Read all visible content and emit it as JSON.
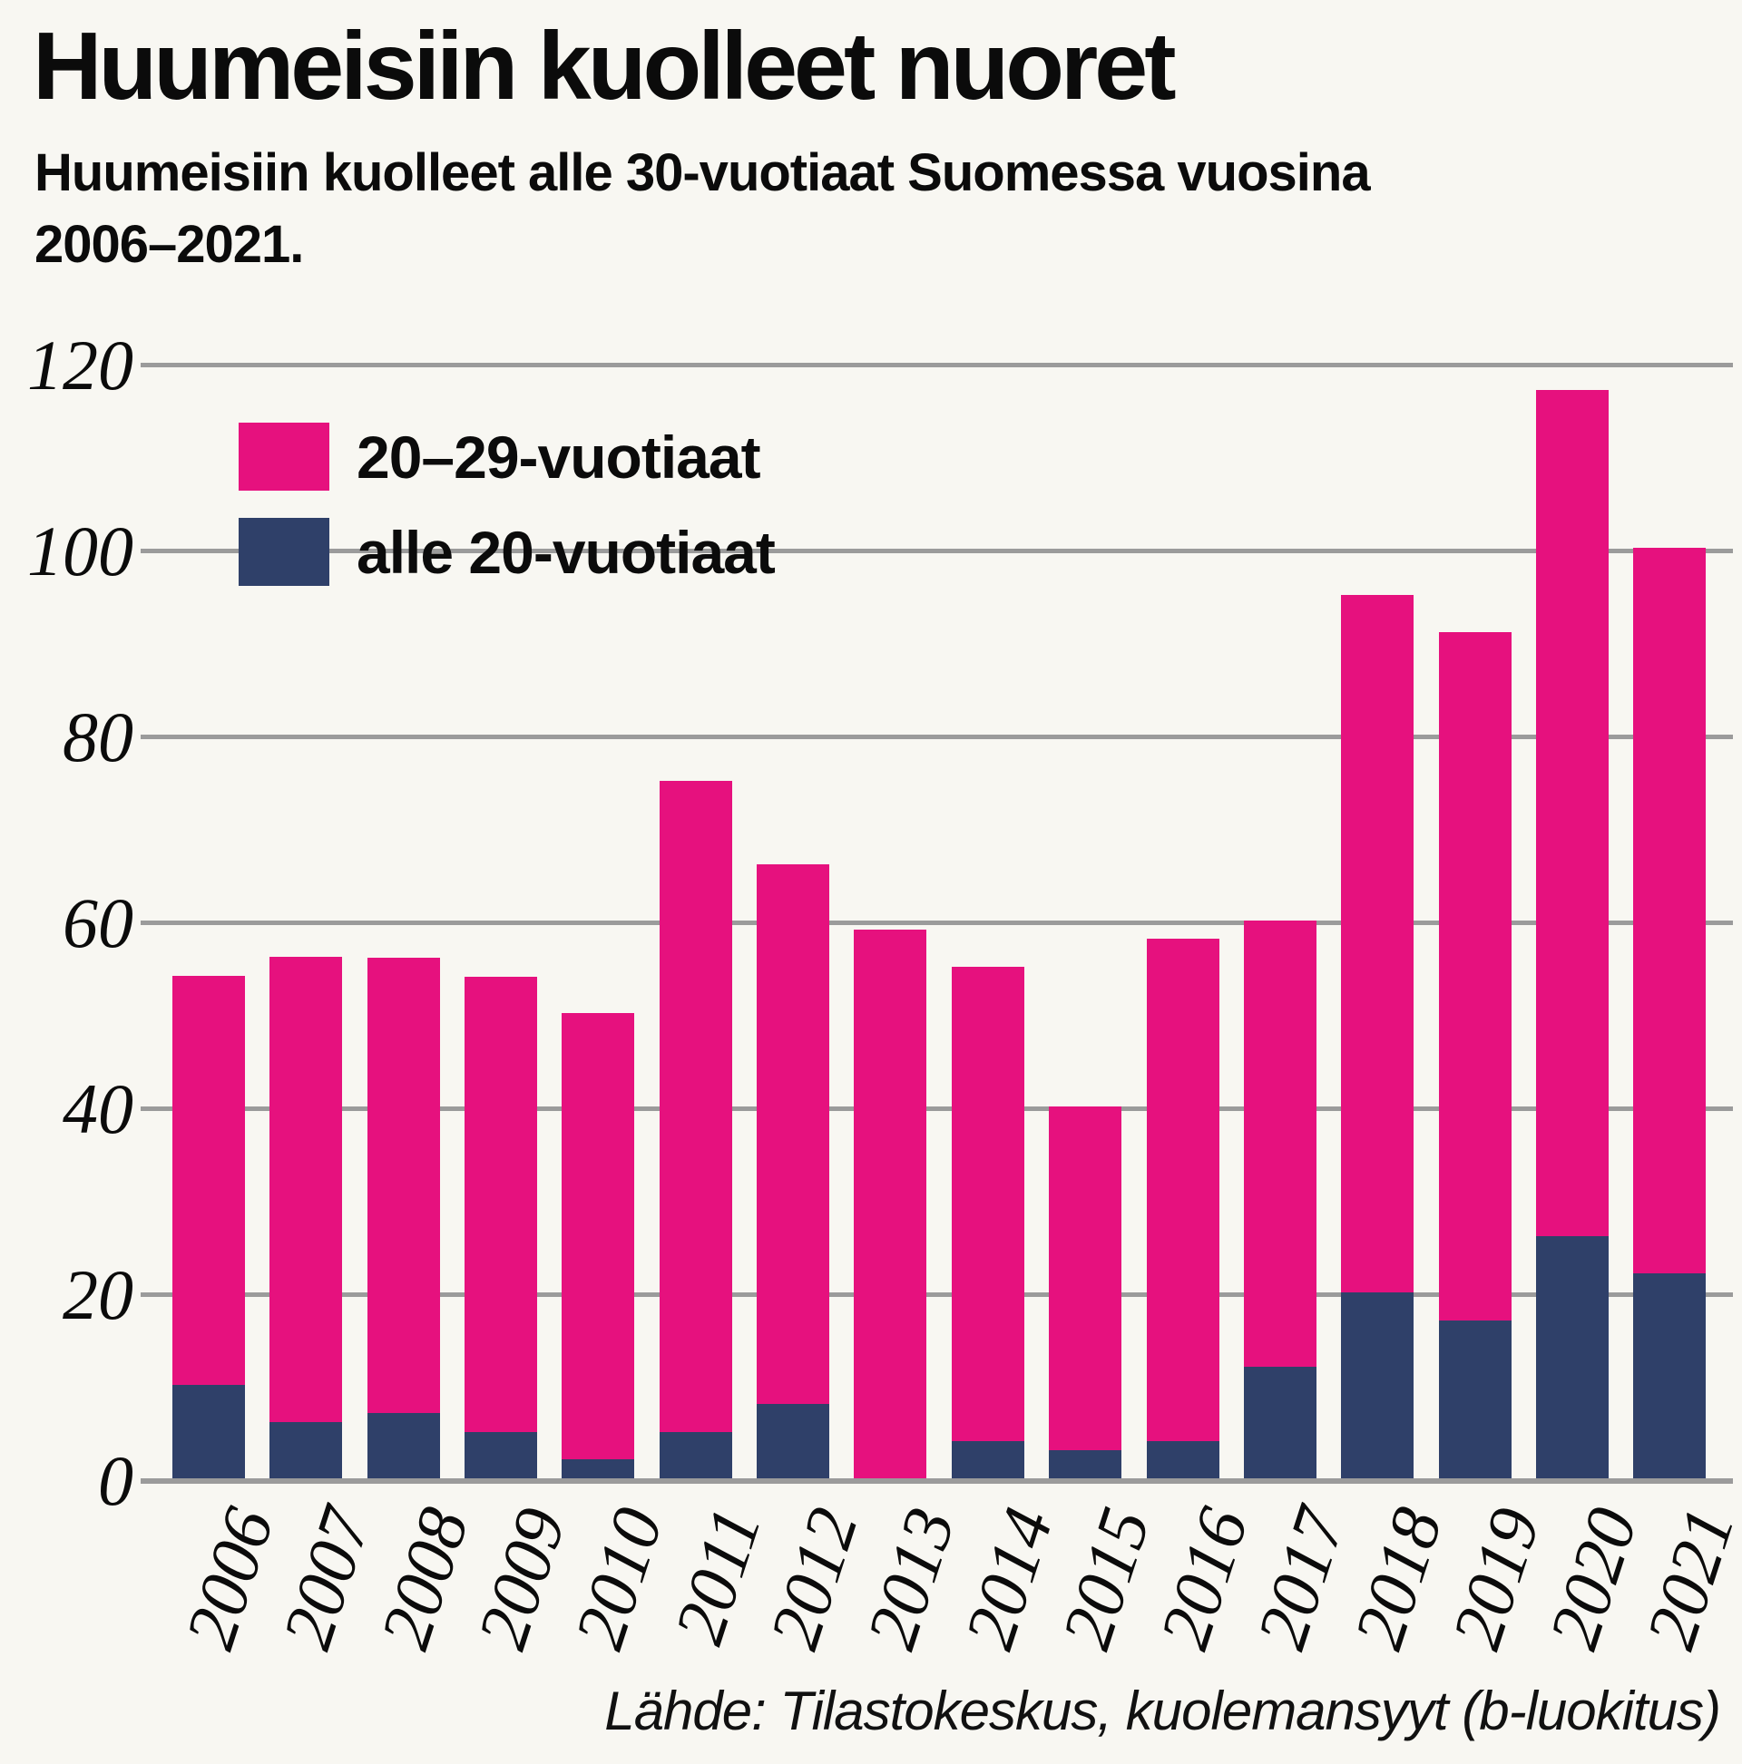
{
  "header": {
    "title": "Huumeisiin kuolleet nuoret",
    "subtitle": "Huumeisiin kuolleet alle 30-vuotiaat Suomessa vuosina 2006–2021."
  },
  "legend": {
    "items": [
      {
        "label": "20–29-vuotiaat",
        "color": "#e6117e"
      },
      {
        "label": "alle 20-vuotiaat",
        "color": "#2f4069"
      }
    ]
  },
  "y_axis": {
    "ticks": [
      120,
      100,
      80,
      60,
      40,
      20,
      0
    ]
  },
  "x_axis": {
    "labels": [
      "2006",
      "2007",
      "2008",
      "2009",
      "2010",
      "2011",
      "2012",
      "2013",
      "2014",
      "2015",
      "2016",
      "2017",
      "2018",
      "2019",
      "2020",
      "2021"
    ]
  },
  "source": "Lähde: Tilastokeskus, kuolemansyyt (b-luokitus)",
  "colors": {
    "background": "#f8f7f2",
    "gridline": "#9b9b9b",
    "axis_line": "#9b9b9b",
    "text": "#0b0b0b",
    "bar_20_29": "#e6117e",
    "bar_alle_20": "#2f4069"
  },
  "chart_data": {
    "type": "bar",
    "stacked": true,
    "title": "Huumeisiin kuolleet nuoret",
    "subtitle": "Huumeisiin kuolleet alle 30-vuotiaat Suomessa vuosina 2006–2021.",
    "categories": [
      "2006",
      "2007",
      "2008",
      "2009",
      "2010",
      "2011",
      "2012",
      "2013",
      "2014",
      "2015",
      "2016",
      "2017",
      "2018",
      "2019",
      "2020",
      "2021"
    ],
    "series": [
      {
        "name": "20–29-vuotiaat",
        "color": "#e6117e",
        "stack_order": "top",
        "values": [
          44,
          50,
          49,
          49,
          48,
          70,
          58,
          59,
          51,
          37,
          54,
          48,
          75,
          74,
          91,
          78
        ]
      },
      {
        "name": "alle 20-vuotiaat",
        "color": "#2f4069",
        "stack_order": "bottom",
        "values": [
          10,
          6,
          7,
          5,
          2,
          5,
          8,
          0,
          4,
          3,
          4,
          12,
          20,
          17,
          26,
          22
        ]
      }
    ],
    "totals": [
      54,
      56,
      56,
      54,
      50,
      75,
      66,
      59,
      55,
      40,
      58,
      60,
      95,
      91,
      117,
      100
    ],
    "xlabel": "",
    "ylabel": "",
    "ylim": [
      0,
      120
    ],
    "yticks": [
      0,
      20,
      40,
      60,
      80,
      100,
      120
    ],
    "grid": true,
    "legend_position": "top-left",
    "source": "Lähde: Tilastokeskus, kuolemansyyt (b-luokitus)"
  }
}
